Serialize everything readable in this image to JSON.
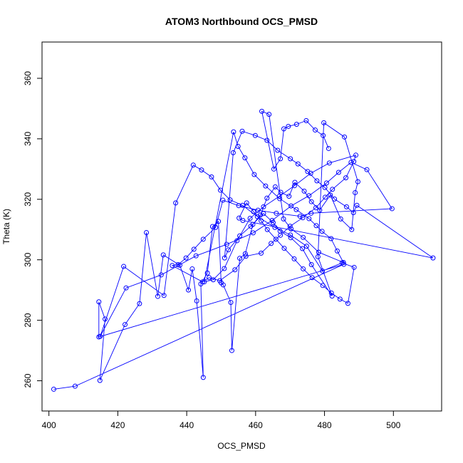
{
  "chart_data": {
    "type": "line",
    "title": "ATOM3 Northbound OCS_PMSD",
    "xlabel": "OCS_PMSD",
    "ylabel": "Theta (K)",
    "xlim": [
      398,
      514
    ],
    "ylim": [
      250,
      372
    ],
    "x_ticks": [
      400,
      420,
      440,
      460,
      480,
      500
    ],
    "y_ticks": [
      260,
      280,
      300,
      320,
      340,
      360
    ],
    "markers": "open-circle",
    "grid": false,
    "colors": {
      "series": "#0000ff",
      "axis": "#000000"
    },
    "series": [
      {
        "x": [
          401.4,
          407.6,
          485.6,
          414.5,
          414.5,
          416.3,
          414.8,
          422.1,
          426.3,
          428.3,
          431.6,
          433.2,
          438.0,
          440.5,
          441.6,
          442.9,
          444.8,
          444.1,
          446.0,
          447.5,
          449.2,
          450.0,
          450.6,
          452.8,
          453.1,
          455.4,
          457.0,
          459.2,
          461.4,
          463.3,
          465.7,
          467.3,
          469.7,
          471.4,
          474.1,
          476.2,
          478.6,
          481.7,
          484.7,
          487.9,
          488.9,
          489.7,
          485.8,
          479.8,
          478.1,
          482.2,
          476.2,
          473.6,
          470.2,
          467.1,
          465.1,
          462.3,
          458.6,
          455.4,
          452.1,
          451.0,
          453.5,
          456.1,
          459.9,
          463.3,
          466.4,
          470.1,
          472.3,
          475.1,
          477.8,
          480.1,
          482.9,
          486.4,
          488.4,
          489.4,
          511.5,
          456.3,
          455.2,
          457.4,
          459.4,
          461.6,
          463.4,
          465.9,
          468.3,
          471.2,
          473.8,
          476.4,
          479.5,
          482.0,
          484.5,
          486.8,
          488.6,
          485.1,
          479.4,
          474.8,
          470.1,
          465.6,
          460.5,
          456.2,
          452.6,
          449.8,
          447.2,
          444.3,
          441.9,
          436.8,
          433.4,
          421.7,
          414.9,
          422.4,
          432.6,
          442.7,
          451.6,
          459.3,
          464.8,
          470.3,
          475.5,
          480.6,
          484.1,
          487.7,
          492.3,
          499.6,
          476.1,
          472.9,
          466.0,
          460.7,
          455.1,
          450.5,
          448.4,
          444.8,
          442.1,
          439.8,
          437.5,
          435.8,
          444.6,
          446.5,
          449.6,
          454.0,
          457.2,
          461.6,
          464.5,
          467.2,
          470.0,
          473.7,
          477.5,
          480.2,
          482.3,
          486.2,
          488.5,
          489.1,
          481.4,
          476.0,
          471.3,
          466.9,
          462.3,
          458.4,
          454.6,
          450.9,
          447.7,
          445.1,
          453.6,
          454.9,
          456.9,
          459.6,
          462.9,
          467.0,
          471.8,
          475.5,
          477.6,
          479.3,
          481.9,
          483.7,
          485.5,
          478.3,
          473.8,
          470.3,
          468.1,
          463.9,
          461.8,
          465.3,
          467.2,
          468.2,
          469.5,
          471.9,
          474.7,
          477.3,
          479.6,
          481.2
        ],
        "y": [
          257.2,
          258.2,
          298.5,
          274.5,
          286.1,
          280.4,
          260.1,
          278.6,
          285.5,
          309.0,
          287.9,
          301.6,
          298.2,
          290.0,
          297.0,
          286.4,
          261.1,
          292.0,
          295.6,
          311.0,
          312.7,
          292.4,
          291.7,
          285.9,
          270.0,
          300.5,
          302.0,
          311.7,
          314.8,
          320.4,
          324.1,
          322.3,
          321.0,
          325.6,
          322.7,
          319.2,
          316.4,
          321.4,
          313.5,
          310.0,
          322.2,
          325.8,
          340.6,
          345.3,
          301.0,
          288.0,
          298.4,
          303.7,
          307.3,
          309.5,
          312.3,
          315.3,
          311.1,
          307.9,
          303.3,
          300.6,
          335.4,
          342.5,
          341.1,
          339.5,
          336.2,
          333.4,
          331.7,
          329.2,
          326.1,
          323.9,
          320.1,
          317.5,
          315.6,
          318.0,
          300.6,
          313.0,
          313.8,
          318.8,
          315.9,
          312.9,
          310.0,
          306.8,
          303.8,
          300.3,
          297.0,
          294.1,
          291.5,
          289.0,
          287.0,
          285.6,
          297.5,
          299.0,
          296.3,
          304.5,
          308.2,
          310.7,
          314.3,
          318.0,
          319.8,
          323.0,
          327.4,
          329.7,
          331.3,
          318.8,
          288.2,
          297.8,
          274.7,
          290.7,
          295.0,
          301.3,
          305.1,
          308.9,
          313.0,
          317.8,
          321.2,
          325.4,
          328.9,
          332.2,
          329.8,
          316.9,
          315.4,
          314.4,
          315.4,
          316.4,
          317.9,
          319.7,
          310.7,
          306.8,
          303.5,
          300.6,
          298.4,
          298.1,
          292.7,
          294.1,
          293.1,
          296.7,
          301.2,
          302.2,
          305.4,
          308.1,
          311.1,
          313.9,
          317.2,
          320.7,
          323.3,
          327.1,
          332.5,
          334.6,
          332.0,
          328.6,
          324.5,
          321.0,
          317.5,
          313.7,
          306.3,
          297.1,
          293.4,
          292.7,
          342.3,
          337.5,
          333.7,
          328.2,
          324.4,
          320.2,
          316.6,
          313.6,
          311.3,
          309.4,
          307.0,
          302.9,
          299.1,
          302.5,
          307.4,
          310.2,
          313.5,
          348.1,
          349.1,
          330.0,
          333.4,
          343.3,
          344.1,
          344.8,
          346.0,
          342.9,
          341.1,
          336.8
        ]
      }
    ]
  }
}
